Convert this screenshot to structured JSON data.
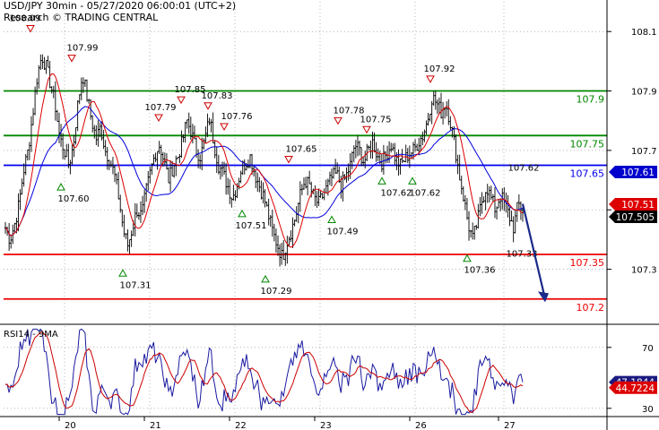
{
  "header": {
    "line1": "USD/JPY 30min - 05/27/2020 06:00:01 (UTC+2)",
    "line2": "Research © TRADING CENTRAL"
  },
  "rsi_header": "RSI14 - 9MA",
  "colors": {
    "price": "#000000",
    "ma_fast": "#dd0000",
    "ma_slow": "#0000dd",
    "resistance": "#008800",
    "pivot": "#0000ee",
    "support": "#ee0000",
    "forecast_arrow": "#1a2a8a",
    "rsi": "#1a1aa0",
    "rsi_ma": "#cc0000",
    "grid": "#888888"
  },
  "chart_data": [
    {
      "type": "line",
      "title": "USD/JPY 30min",
      "ylim": [
        107.13,
        108.2
      ],
      "y_ticks": [
        108.1,
        107.9,
        107.7,
        107.5,
        107.3
      ],
      "x_ticks": [
        "20",
        "21",
        "22",
        "23",
        "26",
        "27"
      ],
      "horizontal_levels": [
        {
          "value": 107.9,
          "label": "107.9",
          "kind": "resistance"
        },
        {
          "value": 107.75,
          "label": "107.75",
          "kind": "resistance"
        },
        {
          "value": 107.65,
          "label": "107.65",
          "kind": "pivot"
        },
        {
          "value": 107.35,
          "label": "107.35",
          "kind": "support"
        },
        {
          "value": 107.2,
          "label": "107.2",
          "kind": "support"
        }
      ],
      "price_tags": [
        {
          "value": 107.61,
          "label": "107.61",
          "kind": "blue"
        },
        {
          "value": 107.51,
          "label": "107.51",
          "kind": "red"
        },
        {
          "value": 107.505,
          "label": "107.505",
          "kind": "black"
        }
      ],
      "swing_points": [
        {
          "value": 108.09,
          "label": "108.09",
          "type": "high"
        },
        {
          "value": 107.99,
          "label": "107.99",
          "type": "high"
        },
        {
          "value": 107.6,
          "label": "107.60",
          "type": "low"
        },
        {
          "value": 107.31,
          "label": "107.31",
          "type": "low"
        },
        {
          "value": 107.79,
          "label": "107.79",
          "type": "high"
        },
        {
          "value": 107.85,
          "label": "107.85",
          "type": "high"
        },
        {
          "value": 107.83,
          "label": "107.83",
          "type": "high"
        },
        {
          "value": 107.51,
          "label": "107.51",
          "type": "low"
        },
        {
          "value": 107.76,
          "label": "107.76",
          "type": "high"
        },
        {
          "value": 107.29,
          "label": "107.29",
          "type": "low"
        },
        {
          "value": 107.65,
          "label": "107.65",
          "type": "high"
        },
        {
          "value": 107.78,
          "label": "107.78",
          "type": "high"
        },
        {
          "value": 107.49,
          "label": "107.49",
          "type": "low"
        },
        {
          "value": 107.75,
          "label": "107.75",
          "type": "high"
        },
        {
          "value": 107.62,
          "label": "107.62",
          "type": "low"
        },
        {
          "value": 107.62,
          "label": "107.62",
          "type": "low"
        },
        {
          "value": 107.92,
          "label": "107.92",
          "type": "high"
        },
        {
          "value": 107.36,
          "label": "107.36",
          "type": "low"
        },
        {
          "value": 107.62,
          "label": "107.62",
          "type": "label"
        },
        {
          "value": 107.33,
          "label": "107.33",
          "type": "label"
        }
      ],
      "close_path": [
        107.44,
        107.4,
        107.45,
        107.52,
        107.63,
        107.7,
        107.82,
        107.95,
        108.02,
        107.98,
        107.92,
        107.85,
        107.74,
        107.7,
        107.65,
        107.72,
        107.86,
        107.96,
        107.88,
        107.8,
        107.74,
        107.78,
        107.7,
        107.67,
        107.62,
        107.54,
        107.43,
        107.38,
        107.44,
        107.5,
        107.48,
        107.56,
        107.63,
        107.69,
        107.72,
        107.66,
        107.6,
        107.65,
        107.68,
        107.73,
        107.8,
        107.76,
        107.7,
        107.68,
        107.74,
        107.81,
        107.72,
        107.65,
        107.62,
        107.58,
        107.54,
        107.58,
        107.64,
        107.66,
        107.68,
        107.62,
        107.58,
        107.54,
        107.48,
        107.42,
        107.38,
        107.34,
        107.39,
        107.43,
        107.48,
        107.55,
        107.6,
        107.58,
        107.54,
        107.52,
        107.55,
        107.58,
        107.61,
        107.62,
        107.58,
        107.61,
        107.65,
        107.72,
        107.7,
        107.66,
        107.7,
        107.73,
        107.68,
        107.66,
        107.69,
        107.72,
        107.67,
        107.65,
        107.67,
        107.69,
        107.7,
        107.73,
        107.75,
        107.8,
        107.88,
        107.86,
        107.83,
        107.86,
        107.8,
        107.72,
        107.62,
        107.54,
        107.45,
        107.4,
        107.46,
        107.53,
        107.58,
        107.54,
        107.5,
        107.55,
        107.52,
        107.48,
        107.44,
        107.52,
        107.5
      ]
    },
    {
      "type": "line",
      "title": "RSI14 - 9MA",
      "ylim": [
        24,
        84
      ],
      "y_ticks": [
        70,
        30
      ],
      "current": [
        {
          "label": "47.1844",
          "value": 47.1844,
          "kind": "blue"
        },
        {
          "label": "44.7224",
          "value": 44.7224,
          "kind": "red"
        }
      ]
    }
  ]
}
